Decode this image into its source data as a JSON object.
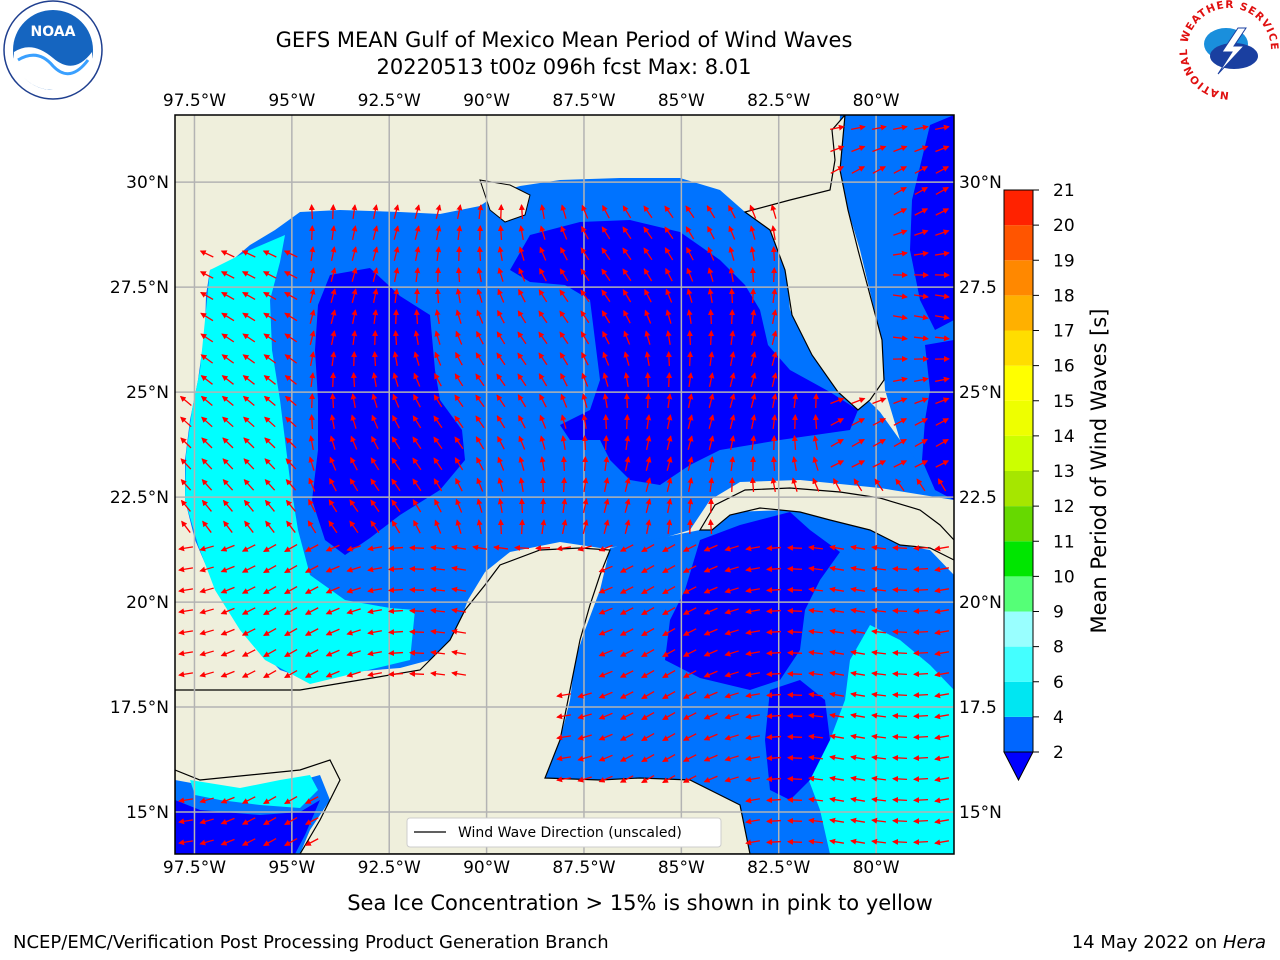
{
  "title_line1": "GEFS MEAN Gulf of Mexico Mean Period of Wind Waves",
  "title_line2": "20220513 t00z 096h fcst   Max: 8.01",
  "axes": {
    "lon_ticks": [
      "97.5°W",
      "95°W",
      "92.5°W",
      "90°W",
      "87.5°W",
      "85°W",
      "82.5°W",
      "80°W"
    ],
    "lon_values": [
      -97.5,
      -95,
      -92.5,
      -90,
      -87.5,
      -85,
      -82.5,
      -80
    ],
    "lat_ticks_left": [
      "30°N",
      "27.5°N",
      "25°N",
      "22.5°N",
      "20°N",
      "17.5°N",
      "15°N"
    ],
    "lat_ticks_right": [
      "30°N",
      "27.5",
      "25°N",
      "22.5",
      "20°N",
      "17.5",
      "15°N"
    ],
    "lat_values": [
      30,
      27.5,
      25,
      22.5,
      20,
      17.5,
      15
    ],
    "lon_range": [
      -98,
      -78
    ],
    "lat_range": [
      14,
      31.6
    ]
  },
  "legend": {
    "label": "Wind Wave Direction (unscaled)"
  },
  "colorbar": {
    "label": "Mean Period of Wind Waves [s]",
    "tick_labels": [
      "2",
      "4",
      "6",
      "8",
      "9",
      "10",
      "11",
      "12",
      "13",
      "14",
      "15",
      "16",
      "17",
      "18",
      "19",
      "20",
      "21"
    ],
    "levels": [
      2,
      4,
      6,
      8,
      9,
      10,
      11,
      12,
      13,
      14,
      15,
      16,
      17,
      18,
      19,
      20,
      21
    ],
    "colors": [
      "#0066ff",
      "#00e6f2",
      "#44ffff",
      "#99ffff",
      "#55ff77",
      "#00e600",
      "#66d900",
      "#a6e600",
      "#ccff00",
      "#eeff00",
      "#ffff00",
      "#ffdd00",
      "#ffb000",
      "#ff8800",
      "#ff5500",
      "#ff2200"
    ],
    "under_color": "#0000ff"
  },
  "colors": {
    "land": "#efefdc",
    "ocean_deep": "#0000ff",
    "ocean_mid": "#0073ff",
    "ocean_light": "#00ffff",
    "arrow": "#ff0000",
    "grid": "#b3b3b3"
  },
  "footer": {
    "ice_note": "Sea Ice Concentration > 15% is shown in pink to yellow",
    "credit": "NCEP/EMC/Verification Post Processing Product Generation Branch",
    "date_prefix": "14 May 2022 on ",
    "date_host": "Hera"
  },
  "logos": {
    "noaa_text": "NOAA",
    "nws_ring_text": "NATIONAL WEATHER SERVICE"
  }
}
